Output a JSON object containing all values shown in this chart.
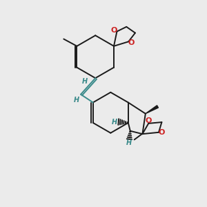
{
  "bg_color": "#ebebeb",
  "bond_color": "#1a1a1a",
  "double_bond_color": "#3a8a8a",
  "oxygen_color": "#cc2222",
  "lw": 1.4,
  "lw_thick": 2.5,
  "fig_size": [
    3.0,
    3.0
  ],
  "dpi": 100,
  "xlim": [
    0,
    10
  ],
  "ylim": [
    0,
    10
  ]
}
